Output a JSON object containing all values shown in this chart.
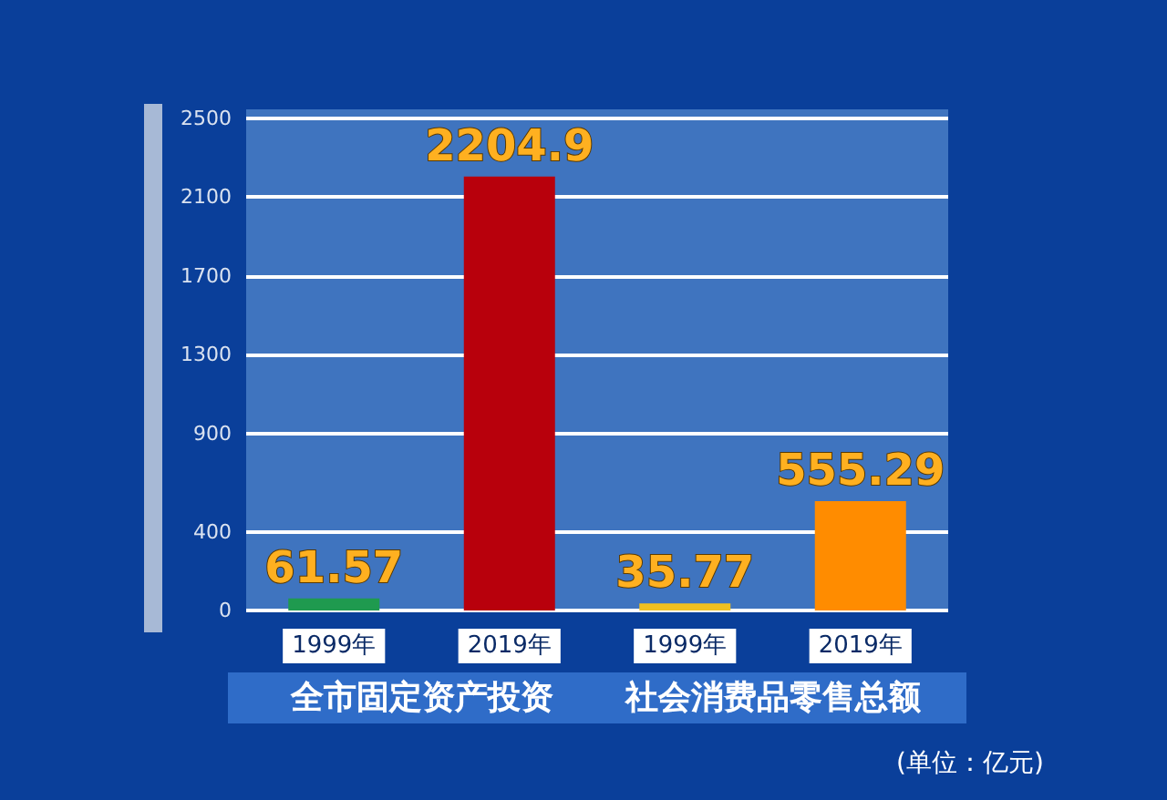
{
  "chart_data": {
    "type": "bar",
    "categories": [
      "1999年",
      "2019年",
      "1999年",
      "2019年"
    ],
    "values": [
      61.57,
      2204.9,
      35.77,
      555.29
    ],
    "colors": [
      "#1f9a4f",
      "#b8000c",
      "#f0c020",
      "#ff8c00"
    ],
    "ylim": [
      0,
      2500
    ],
    "yticks": [
      0,
      400,
      900,
      1300,
      1700,
      2100,
      2500
    ],
    "grid": "y",
    "data_labels": true,
    "annotations": [
      "全市固定资产投资",
      "社会消费品零售总额",
      "(单位：亿元)"
    ]
  }
}
